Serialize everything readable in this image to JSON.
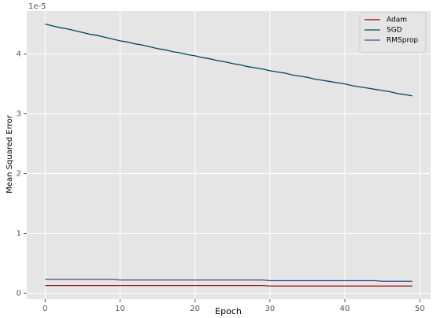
{
  "chart_data": {
    "type": "line",
    "x_label": "Epoch",
    "y_label": "Mean Squared Error",
    "y_offset_label": "1e-5",
    "x": [
      0,
      1,
      2,
      3,
      4,
      5,
      6,
      7,
      8,
      9,
      10,
      11,
      12,
      13,
      14,
      15,
      16,
      17,
      18,
      19,
      20,
      21,
      22,
      23,
      24,
      25,
      26,
      27,
      28,
      29,
      30,
      31,
      32,
      33,
      34,
      35,
      36,
      37,
      38,
      39,
      40,
      41,
      42,
      43,
      44,
      45,
      46,
      47,
      48,
      49
    ],
    "series": [
      {
        "name": "Adam",
        "color": "#8b0000",
        "values": [
          0.13,
          0.13,
          0.13,
          0.13,
          0.13,
          0.13,
          0.13,
          0.13,
          0.13,
          0.13,
          0.13,
          0.13,
          0.13,
          0.13,
          0.13,
          0.13,
          0.13,
          0.13,
          0.13,
          0.13,
          0.13,
          0.13,
          0.13,
          0.13,
          0.13,
          0.13,
          0.13,
          0.13,
          0.13,
          0.13,
          0.12,
          0.12,
          0.12,
          0.12,
          0.12,
          0.12,
          0.12,
          0.12,
          0.12,
          0.12,
          0.12,
          0.12,
          0.12,
          0.12,
          0.12,
          0.12,
          0.12,
          0.12,
          0.12,
          0.12
        ]
      },
      {
        "name": "SGD",
        "color": "#00475a",
        "values": [
          4.5,
          4.47,
          4.44,
          4.42,
          4.39,
          4.36,
          4.33,
          4.31,
          4.28,
          4.25,
          4.22,
          4.2,
          4.17,
          4.15,
          4.12,
          4.09,
          4.07,
          4.04,
          4.02,
          3.99,
          3.97,
          3.94,
          3.92,
          3.89,
          3.87,
          3.84,
          3.82,
          3.79,
          3.77,
          3.75,
          3.72,
          3.7,
          3.68,
          3.65,
          3.63,
          3.61,
          3.58,
          3.56,
          3.54,
          3.52,
          3.5,
          3.47,
          3.45,
          3.43,
          3.41,
          3.39,
          3.37,
          3.34,
          3.32,
          3.3
        ]
      },
      {
        "name": "RMSprop",
        "color": "#4a4a8c",
        "values": [
          0.23,
          0.23,
          0.23,
          0.23,
          0.23,
          0.23,
          0.23,
          0.23,
          0.23,
          0.23,
          0.22,
          0.22,
          0.22,
          0.22,
          0.22,
          0.22,
          0.22,
          0.22,
          0.22,
          0.22,
          0.22,
          0.22,
          0.22,
          0.22,
          0.22,
          0.22,
          0.22,
          0.22,
          0.22,
          0.22,
          0.21,
          0.21,
          0.21,
          0.21,
          0.21,
          0.21,
          0.21,
          0.21,
          0.21,
          0.21,
          0.21,
          0.21,
          0.21,
          0.21,
          0.21,
          0.2,
          0.2,
          0.2,
          0.2,
          0.2
        ]
      }
    ],
    "xlim": [
      -2.45,
      51.45
    ],
    "xticks": [
      0,
      10,
      20,
      30,
      40,
      50
    ],
    "ylim": [
      -0.099,
      4.719
    ],
    "yticks": [
      0,
      1,
      2,
      3,
      4
    ],
    "grid": true,
    "legend": "upper right"
  }
}
